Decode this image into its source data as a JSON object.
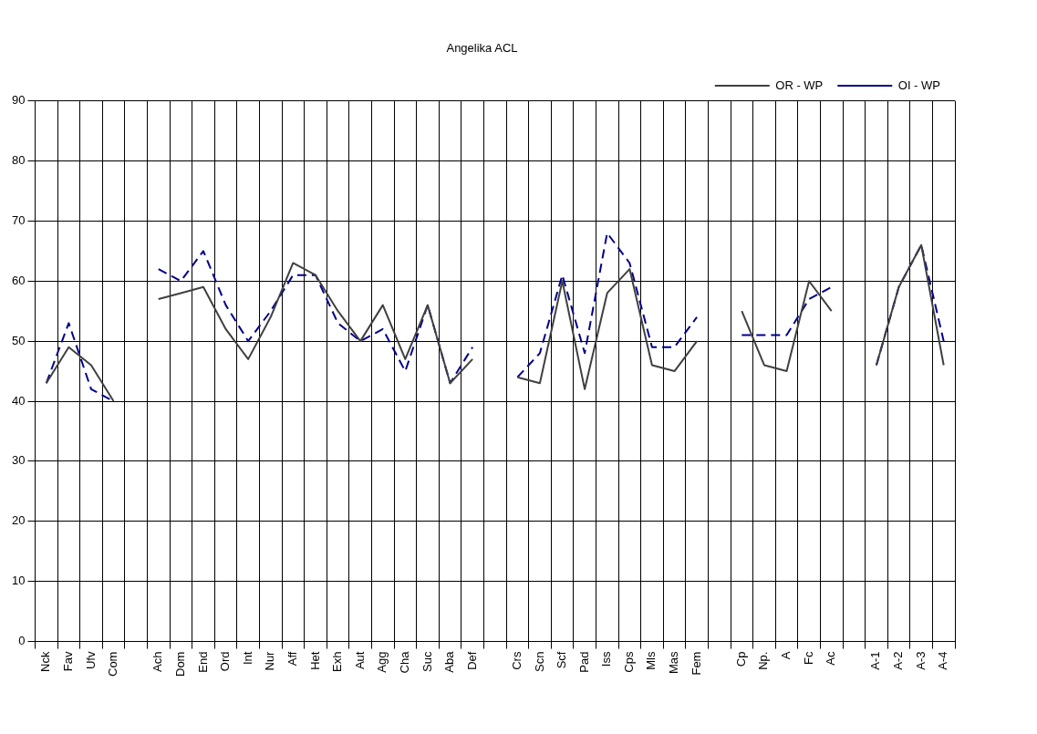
{
  "chart_data": {
    "type": "line",
    "title": "Angelika ACL",
    "categories": [
      "Nck",
      "Fav",
      "Ufv",
      "Com",
      null,
      "Ach",
      "Dom",
      "End",
      "Ord",
      "Int",
      "Nur",
      "Aff",
      "Het",
      "Exh",
      "Aut",
      "Agg",
      "Cha",
      "Suc",
      "Aba",
      "Def",
      null,
      "Crs",
      "Scn",
      "Scf",
      "Pad",
      "Iss",
      "Cps",
      "Mls",
      "Mas",
      "Fem",
      null,
      "Cp",
      "Np.",
      "A",
      "Fc",
      "Ac",
      null,
      "A-1",
      "A-2",
      "A-3",
      "A-4"
    ],
    "series": [
      {
        "name": "OR - WP",
        "color": "#404040",
        "line_style": "solid",
        "values": [
          43,
          49,
          46,
          40,
          null,
          57,
          58,
          59,
          52,
          47,
          54,
          63,
          61,
          55,
          50,
          56,
          47,
          56,
          43,
          47,
          null,
          44,
          43,
          60,
          42,
          58,
          62,
          46,
          45,
          50,
          null,
          55,
          46,
          45,
          60,
          55,
          null,
          46,
          59,
          66,
          46
        ]
      },
      {
        "name": "OI - WP",
        "color": "#00008b",
        "line_style": "dashed",
        "values": [
          43,
          53,
          42,
          40,
          null,
          62,
          60,
          65,
          56,
          50,
          55,
          61,
          61,
          53,
          50,
          52,
          45,
          56,
          43,
          49,
          null,
          44,
          48,
          61,
          48,
          68,
          63,
          49,
          49,
          54,
          null,
          51,
          51,
          51,
          57,
          59,
          null,
          46,
          59,
          66,
          50
        ]
      }
    ],
    "ylim": [
      0,
      90
    ],
    "yticks": [
      0,
      10,
      20,
      30,
      40,
      50,
      60,
      70,
      80,
      90
    ],
    "grid": true,
    "legend": "top right",
    "marker": "none"
  }
}
